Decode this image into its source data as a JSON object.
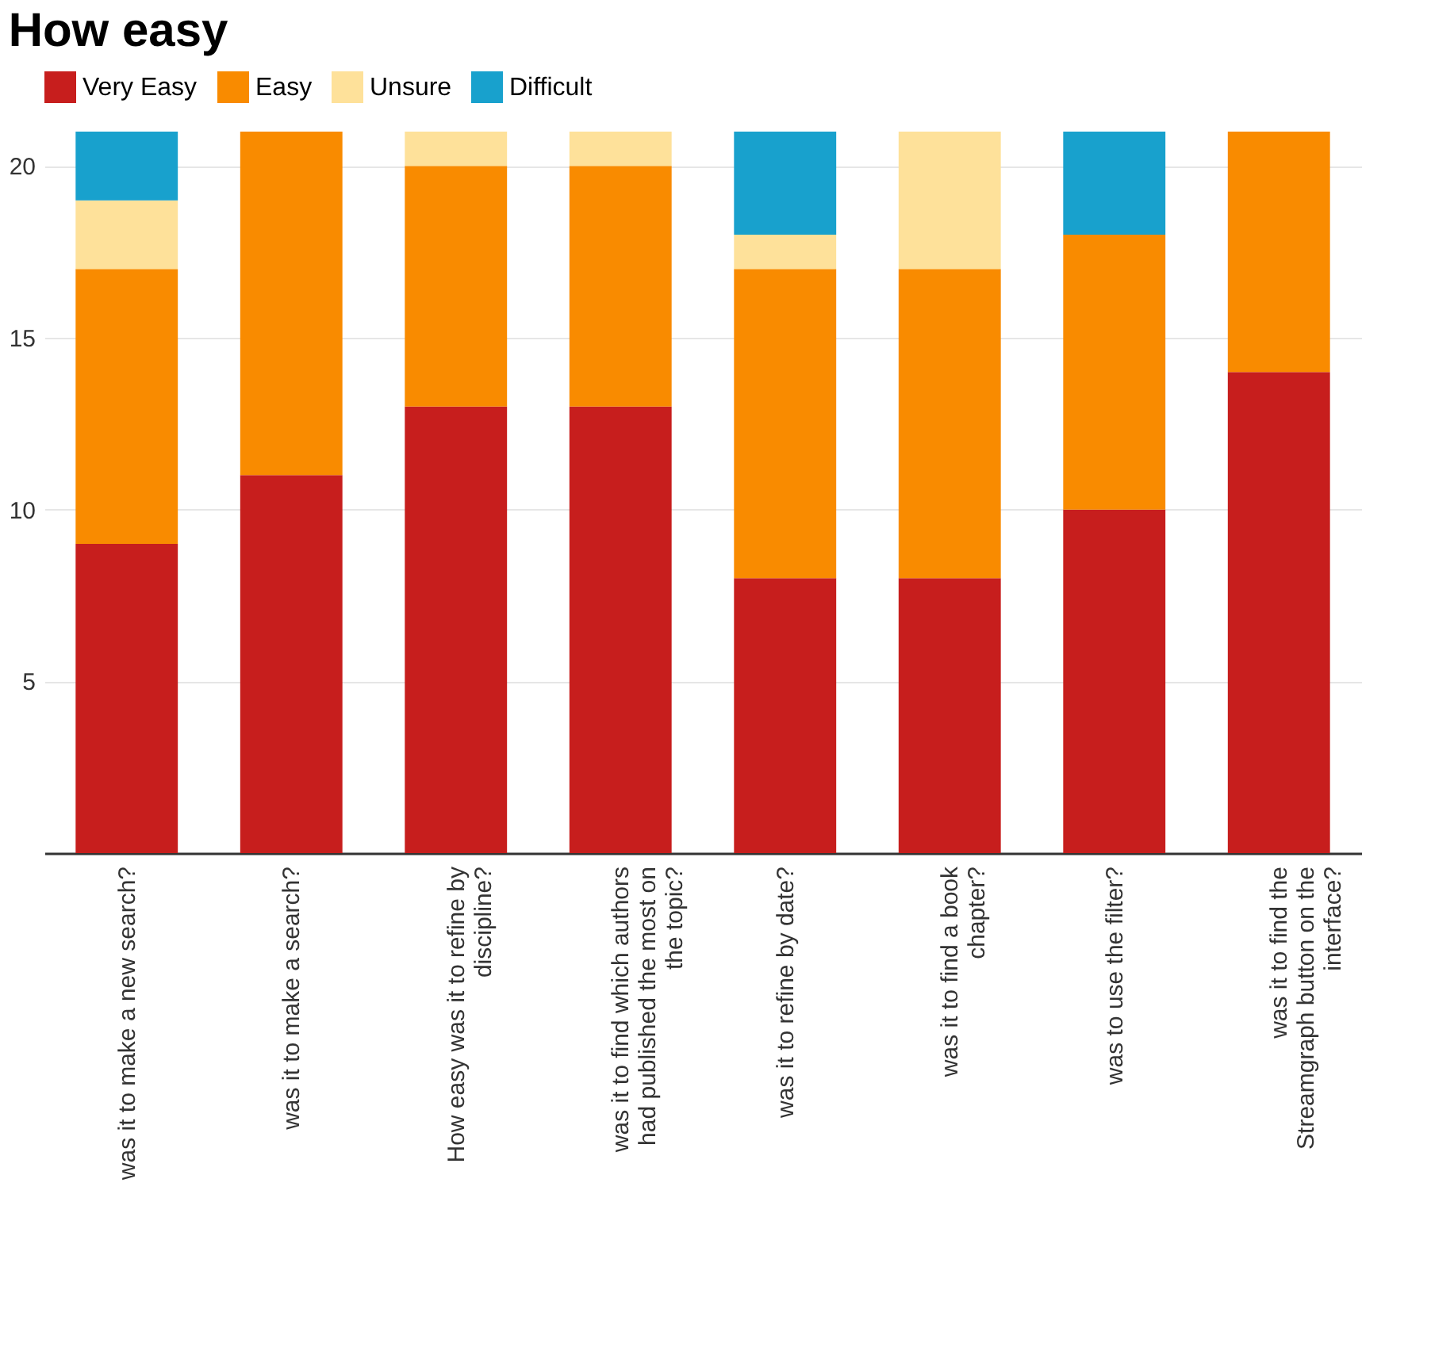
{
  "chart_data": {
    "type": "bar",
    "title": "How easy",
    "stacked": true,
    "categories": [
      "was it to make a new search?",
      "was it to make a search?",
      "How easy was it to refine by discipline?",
      "was it to find which authors had published the most on the topic?",
      "was it to refine by date?",
      "was it to find a book chapter?",
      "was to use the filter?",
      "was it to find the Streamgraph button on the interface?"
    ],
    "series": [
      {
        "name": "Very Easy",
        "color": "#c71e1d",
        "values": [
          9,
          11,
          13,
          13,
          8,
          8,
          10,
          14
        ]
      },
      {
        "name": "Easy",
        "color": "#f98b00",
        "values": [
          8,
          10,
          7,
          7,
          9,
          9,
          8,
          7
        ]
      },
      {
        "name": "Unsure",
        "color": "#fee19a",
        "values": [
          2,
          0,
          1,
          1,
          1,
          4,
          0,
          0
        ]
      },
      {
        "name": "Difficult",
        "color": "#18a1cd",
        "values": [
          2,
          0,
          0,
          0,
          3,
          0,
          3,
          0
        ]
      }
    ],
    "ylim": [
      0,
      21
    ],
    "yticks": [
      5,
      10,
      15,
      20
    ],
    "grid": "y",
    "legend": "top left"
  }
}
